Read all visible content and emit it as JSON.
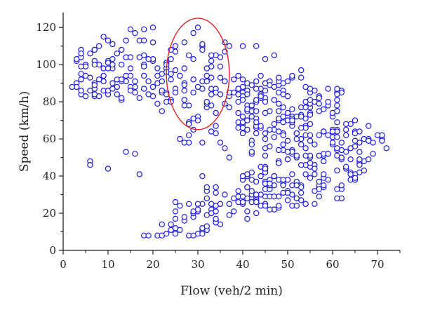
{
  "chart_data": {
    "type": "scatter",
    "title": "",
    "xlabel": "Flow (veh/2 min)",
    "ylabel": "Speed (km/h)",
    "xlim": [
      0,
      75
    ],
    "ylim": [
      0,
      128
    ],
    "xticks": [
      0,
      10,
      20,
      30,
      40,
      50,
      60,
      70
    ],
    "yticks": [
      0,
      20,
      40,
      60,
      80,
      100,
      120
    ],
    "grid": false,
    "legend": "none",
    "marker": "open-circle",
    "marker_color": "#1d1de0",
    "highlight": {
      "shape": "ellipse",
      "color": "#e02020",
      "center": [
        30,
        95
      ],
      "radius_x": 7,
      "radius_y": 30
    },
    "regions": [
      {
        "x": [
          2,
          8
        ],
        "y": [
          82,
          110
        ],
        "count": 26,
        "seed": 11
      },
      {
        "x": [
          7,
          14
        ],
        "y": [
          80,
          117
        ],
        "count": 36,
        "seed": 12
      },
      {
        "x": [
          14,
          20
        ],
        "y": [
          82,
          118
        ],
        "count": 30,
        "seed": 13
      },
      {
        "x": [
          20,
          26
        ],
        "y": [
          78,
          115
        ],
        "count": 26,
        "seed": 14
      },
      {
        "x": [
          26,
          32
        ],
        "y": [
          72,
          112
        ],
        "count": 24,
        "seed": 15
      },
      {
        "x": [
          32,
          38
        ],
        "y": [
          74,
          108
        ],
        "count": 26,
        "seed": 16
      },
      {
        "x": [
          38,
          44
        ],
        "y": [
          64,
          100
        ],
        "count": 30,
        "seed": 17
      },
      {
        "x": [
          44,
          50
        ],
        "y": [
          28,
          96
        ],
        "count": 70,
        "seed": 18
      },
      {
        "x": [
          50,
          56
        ],
        "y": [
          24,
          95
        ],
        "count": 80,
        "seed": 19
      },
      {
        "x": [
          56,
          62
        ],
        "y": [
          28,
          88
        ],
        "count": 66,
        "seed": 20
      },
      {
        "x": [
          62,
          68
        ],
        "y": [
          38,
          72
        ],
        "count": 34,
        "seed": 21
      },
      {
        "x": [
          68,
          72
        ],
        "y": [
          48,
          62
        ],
        "count": 8,
        "seed": 22
      },
      {
        "x": [
          40,
          46
        ],
        "y": [
          50,
          90
        ],
        "count": 26,
        "seed": 23
      },
      {
        "x": [
          24,
          36
        ],
        "y": [
          8,
          26
        ],
        "count": 32,
        "seed": 24
      },
      {
        "x": [
          32,
          44
        ],
        "y": [
          14,
          34
        ],
        "count": 36,
        "seed": 25
      },
      {
        "x": [
          40,
          50
        ],
        "y": [
          20,
          48
        ],
        "count": 32,
        "seed": 26
      },
      {
        "x": [
          26,
          34
        ],
        "y": [
          56,
          74
        ],
        "count": 8,
        "seed": 27
      }
    ],
    "points": [
      [
        6,
        48
      ],
      [
        6,
        46
      ],
      [
        10,
        44
      ],
      [
        14,
        53
      ],
      [
        16,
        52
      ],
      [
        17,
        41
      ],
      [
        18,
        8
      ],
      [
        19,
        8
      ],
      [
        21,
        8
      ],
      [
        22,
        8
      ],
      [
        23,
        9
      ],
      [
        22,
        14
      ],
      [
        24,
        14
      ],
      [
        25,
        26
      ],
      [
        31,
        40
      ],
      [
        35,
        58
      ],
      [
        29,
        65
      ],
      [
        30,
        70
      ],
      [
        33,
        64
      ],
      [
        28,
        62
      ],
      [
        31,
        58
      ],
      [
        30,
        120
      ],
      [
        29,
        117
      ],
      [
        27,
        112
      ],
      [
        36,
        112
      ],
      [
        37,
        110
      ],
      [
        40,
        110
      ],
      [
        43,
        110
      ],
      [
        37,
        50
      ],
      [
        36,
        55
      ],
      [
        42,
        57
      ],
      [
        71,
        62
      ],
      [
        70,
        62
      ],
      [
        69,
        58
      ],
      [
        45,
        103
      ],
      [
        47,
        105
      ],
      [
        53,
        97
      ],
      [
        24,
        80
      ],
      [
        22,
        75
      ],
      [
        20,
        120
      ],
      [
        18,
        119
      ],
      [
        15,
        119
      ]
    ]
  }
}
